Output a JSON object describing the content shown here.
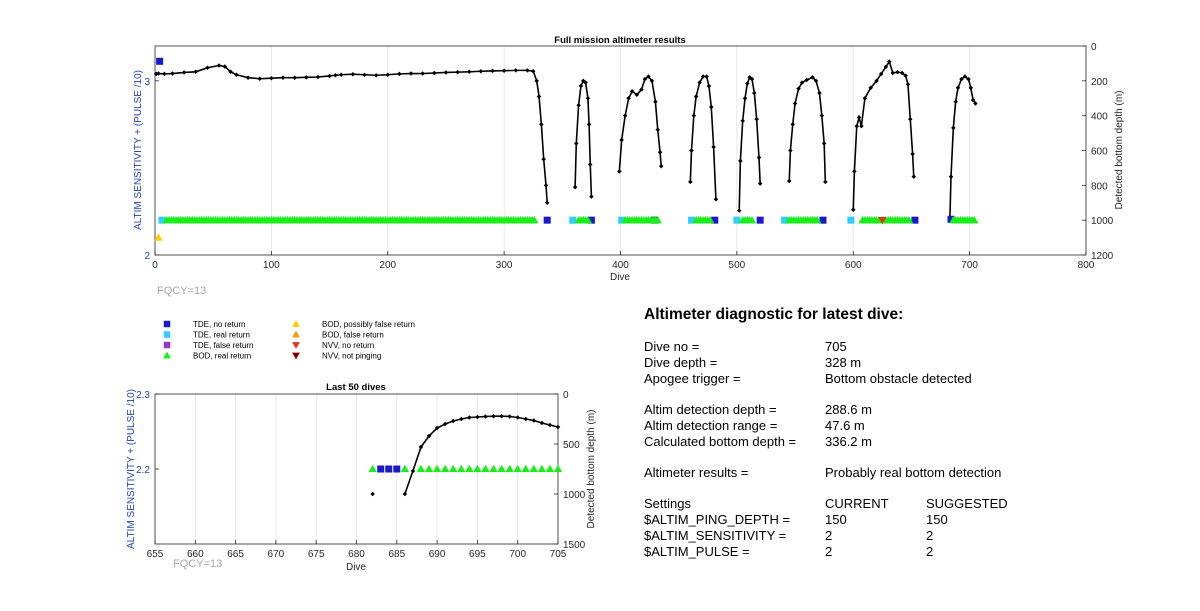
{
  "main_chart": {
    "title": "Full mission altimeter results",
    "xlabel": "Dive",
    "ylabel_left": "ALTIM SENSITIVITY + (PULSE /10)",
    "ylabel_right": "Detected bottom depth (m)",
    "xticks": [
      "0",
      "100",
      "200",
      "300",
      "400",
      "500",
      "600",
      "700",
      "800"
    ],
    "yticks_left": [
      "2",
      "3"
    ],
    "yticks_right": [
      "0",
      "200",
      "400",
      "600",
      "800",
      "1000",
      "1200"
    ],
    "fqcy": "FQCY=13"
  },
  "small_chart": {
    "title": "Last 50 dives",
    "xlabel": "Dive",
    "ylabel_left": "ALTIM SENSITIVITY + (PULSE /10)",
    "ylabel_right": "Detected bottom depth (m)",
    "xticks": [
      "655",
      "660",
      "665",
      "670",
      "675",
      "680",
      "685",
      "690",
      "695",
      "700",
      "705"
    ],
    "yticks_left": [
      "2.3",
      "2.2"
    ],
    "yticks_right": [
      "0",
      "500",
      "1000",
      "1500"
    ],
    "fqcy": "FQCY=13"
  },
  "legend": [
    {
      "label": "TDE, no return",
      "color": "#1a1acc",
      "marker": "square"
    },
    {
      "label": "TDE, real return",
      "color": "#33ccff",
      "marker": "square"
    },
    {
      "label": "TDE, false return",
      "color": "#9933cc",
      "marker": "square"
    },
    {
      "label": "BOD, real return",
      "color": "#1aee1a",
      "marker": "triangle-up"
    },
    {
      "label": "BOD, possibly false return",
      "color": "#ffcc00",
      "marker": "triangle-up"
    },
    {
      "label": "BOD, false return",
      "color": "#ff9900",
      "marker": "triangle-up"
    },
    {
      "label": "NVV, no return",
      "color": "#e6331a",
      "marker": "triangle-down"
    },
    {
      "label": "NVV, not pinging",
      "color": "#800000",
      "marker": "triangle-down"
    }
  ],
  "diagnostic": {
    "title": "Altimeter diagnostic for latest dive:",
    "rows1": [
      {
        "label": "Dive no =",
        "value": "705"
      },
      {
        "label": "Dive depth =",
        "value": "328 m"
      },
      {
        "label": "Apogee trigger =",
        "value": "Bottom obstacle detected"
      }
    ],
    "rows2": [
      {
        "label": "Altim detection depth =",
        "value": "288.6 m"
      },
      {
        "label": "Altim detection range =",
        "value": "47.6 m"
      },
      {
        "label": "Calculated bottom depth =",
        "value": "336.2 m"
      }
    ],
    "results_label": "Altimeter results =",
    "results_value": "Probably real bottom detection",
    "settings_header": {
      "label": "Settings",
      "current": "CURRENT",
      "suggested": "SUGGESTED"
    },
    "settings": [
      {
        "name": "$ALTIM_PING_DEPTH =",
        "current": "150",
        "suggested": "150"
      },
      {
        "name": "$ALTIM_SENSITIVITY =",
        "current": "2",
        "suggested": "2"
      },
      {
        "name": "$ALTIM_PULSE =",
        "current": "2",
        "suggested": "2"
      }
    ]
  },
  "chart_data": [
    {
      "type": "scatter",
      "title": "Full mission altimeter results",
      "xlabel": "Dive",
      "ylabel": "ALTIM SENSITIVITY + (PULSE /10)",
      "ylabel_right": "Detected bottom depth (m)",
      "xlim": [
        0,
        800
      ],
      "ylim": [
        2,
        3.2
      ],
      "ylim_right": [
        1200,
        0
      ],
      "grid": true,
      "series": [
        {
          "name": "",
          "axis": "right",
          "style": "line-dots",
          "color": "#000000",
          "segments": [
            [
              [
                1,
                160
              ],
              [
                3,
                158
              ],
              [
                8,
                160
              ],
              [
                15,
                158
              ],
              [
                25,
                152
              ],
              [
                35,
                148
              ],
              [
                45,
                125
              ],
              [
                55,
                112
              ],
              [
                60,
                118
              ],
              [
                65,
                148
              ],
              [
                70,
                165
              ],
              [
                80,
                182
              ],
              [
                90,
                188
              ],
              [
                100,
                185
              ],
              [
                110,
                182
              ],
              [
                120,
                182
              ],
              [
                130,
                180
              ],
              [
                140,
                178
              ],
              [
                150,
                172
              ],
              [
                155,
                168
              ],
              [
                160,
                165
              ],
              [
                170,
                162
              ],
              [
                180,
                165
              ],
              [
                190,
                168
              ],
              [
                200,
                165
              ],
              [
                210,
                160
              ],
              [
                220,
                158
              ],
              [
                230,
                158
              ],
              [
                240,
                155
              ],
              [
                250,
                152
              ],
              [
                260,
                150
              ],
              [
                270,
                148
              ],
              [
                280,
                145
              ],
              [
                290,
                143
              ],
              [
                300,
                142
              ],
              [
                310,
                140
              ],
              [
                320,
                140
              ],
              [
                325,
                145
              ],
              [
                328,
                200
              ],
              [
                330,
                290
              ],
              [
                332,
                450
              ],
              [
                334,
                650
              ],
              [
                336,
                800
              ],
              [
                337,
                900
              ]
            ],
            [
              [
                361,
                810
              ],
              [
                362,
                560
              ],
              [
                364,
                340
              ],
              [
                366,
                230
              ],
              [
                368,
                200
              ],
              [
                370,
                210
              ],
              [
                372,
                300
              ],
              [
                373,
                450
              ],
              [
                374,
                680
              ],
              [
                375,
                865
              ]
            ],
            [
              [
                399,
                720
              ],
              [
                401,
                540
              ],
              [
                404,
                400
              ],
              [
                407,
                300
              ],
              [
                410,
                260
              ],
              [
                414,
                280
              ],
              [
                418,
                250
              ],
              [
                421,
                190
              ],
              [
                424,
                175
              ],
              [
                427,
                200
              ],
              [
                430,
                320
              ],
              [
                432,
                480
              ],
              [
                434,
                610
              ],
              [
                435,
                690
              ]
            ],
            [
              [
                460,
                780
              ],
              [
                461,
                600
              ],
              [
                463,
                400
              ],
              [
                465,
                290
              ],
              [
                468,
                210
              ],
              [
                471,
                175
              ],
              [
                474,
                175
              ],
              [
                476,
                230
              ],
              [
                478,
                350
              ],
              [
                480,
                580
              ],
              [
                482,
                880
              ]
            ],
            [
              [
                502,
                945
              ],
              [
                503,
                660
              ],
              [
                505,
                430
              ],
              [
                507,
                300
              ],
              [
                509,
                215
              ],
              [
                511,
                180
              ],
              [
                513,
                190
              ],
              [
                515,
                270
              ],
              [
                517,
                420
              ],
              [
                519,
                640
              ],
              [
                520,
                790
              ]
            ],
            [
              [
                545,
                775
              ],
              [
                546,
                600
              ],
              [
                548,
                450
              ],
              [
                550,
                330
              ],
              [
                553,
                245
              ],
              [
                556,
                210
              ],
              [
                560,
                195
              ],
              [
                565,
                180
              ],
              [
                568,
                200
              ],
              [
                571,
                270
              ],
              [
                573,
                400
              ],
              [
                575,
                560
              ],
              [
                576,
                780
              ]
            ],
            [
              [
                600,
                940
              ],
              [
                601,
                720
              ],
              [
                603,
                460
              ],
              [
                605,
                410
              ],
              [
                607,
                460
              ],
              [
                610,
                300
              ],
              [
                615,
                240
              ],
              [
                620,
                200
              ],
              [
                624,
                160
              ],
              [
                628,
                120
              ],
              [
                631,
                90
              ],
              [
                634,
                155
              ],
              [
                638,
                150
              ],
              [
                642,
                155
              ],
              [
                645,
                170
              ],
              [
                647,
                220
              ],
              [
                649,
                420
              ],
              [
                651,
                620
              ],
              [
                652,
                750
              ]
            ],
            [
              [
                683,
                1000
              ],
              [
                684,
                750
              ],
              [
                686,
                470
              ],
              [
                688,
                320
              ],
              [
                690,
                240
              ],
              [
                693,
                190
              ],
              [
                696,
                175
              ],
              [
                699,
                190
              ],
              [
                701,
                240
              ],
              [
                703,
                310
              ],
              [
                705,
                330
              ]
            ]
          ]
        },
        {
          "name": "TDE, no return",
          "axis": "right",
          "points": [
            [
              4,
              88
            ],
            [
              337,
              1000
            ],
            [
              375,
              1000
            ],
            [
              429,
              1000
            ],
            [
              481,
              1000
            ],
            [
              520,
              1000
            ],
            [
              574,
              1000
            ],
            [
              653,
              1000
            ],
            [
              684,
              995
            ]
          ]
        },
        {
          "name": "TDE, real return",
          "axis": "right",
          "points": [
            [
              6,
              1000
            ],
            [
              359,
              1000
            ],
            [
              401,
              1000
            ],
            [
              461,
              1000
            ],
            [
              500,
              1000
            ],
            [
              541,
              1000
            ],
            [
              598,
              1000
            ]
          ]
        },
        {
          "name": "BOD, real return",
          "axis": "right",
          "x_ranges": [
            [
              10,
              327
            ],
            [
              364,
              372
            ],
            [
              404,
              432
            ],
            [
              465,
              478
            ],
            [
              505,
              514
            ],
            [
              545,
              570
            ],
            [
              608,
              648
            ],
            [
              686,
              705
            ]
          ],
          "y": 1000
        },
        {
          "name": "BOD, possibly false return",
          "axis": "left",
          "points": [
            [
              3,
              2.1
            ]
          ]
        },
        {
          "name": "NVV, no return",
          "axis": "right",
          "points": [
            [
              625,
              1000
            ]
          ]
        }
      ]
    },
    {
      "type": "scatter",
      "title": "Last 50 dives",
      "xlabel": "Dive",
      "ylabel": "ALTIM SENSITIVITY + (PULSE /10)",
      "ylabel_right": "Detected bottom depth (m)",
      "xlim": [
        655,
        705
      ],
      "ylim": [
        2.1,
        2.3
      ],
      "ylim_right": [
        1500,
        0
      ],
      "grid": true,
      "series": [
        {
          "name": "",
          "axis": "right",
          "style": "line-dots",
          "color": "#000000",
          "segments": [
            [
              [
                682,
                1000
              ]
            ],
            [
              [
                686,
                1000
              ],
              [
                687,
                770
              ],
              [
                688,
                530
              ],
              [
                689,
                420
              ],
              [
                690,
                340
              ],
              [
                691,
                300
              ],
              [
                692,
                270
              ],
              [
                693,
                250
              ],
              [
                694,
                235
              ],
              [
                695,
                230
              ],
              [
                696,
                225
              ],
              [
                697,
                222
              ],
              [
                698,
                222
              ],
              [
                699,
                225
              ],
              [
                700,
                235
              ],
              [
                701,
                250
              ],
              [
                702,
                265
              ],
              [
                703,
                290
              ],
              [
                704,
                310
              ],
              [
                705,
                330
              ]
            ]
          ]
        },
        {
          "name": "TDE, no return",
          "axis": "left",
          "points": [
            [
              683,
              2.2
            ],
            [
              684,
              2.2
            ],
            [
              685,
              2.2
            ]
          ]
        },
        {
          "name": "BOD, real return",
          "axis": "left",
          "points": [
            [
              682,
              2.2
            ],
            [
              686,
              2.2
            ],
            [
              688,
              2.2
            ],
            [
              689,
              2.2
            ],
            [
              690,
              2.2
            ],
            [
              691,
              2.2
            ],
            [
              692,
              2.2
            ],
            [
              693,
              2.2
            ],
            [
              694,
              2.2
            ],
            [
              695,
              2.2
            ],
            [
              696,
              2.2
            ],
            [
              697,
              2.2
            ],
            [
              698,
              2.2
            ],
            [
              699,
              2.2
            ],
            [
              700,
              2.2
            ],
            [
              701,
              2.2
            ],
            [
              702,
              2.2
            ],
            [
              703,
              2.2
            ],
            [
              704,
              2.2
            ],
            [
              705,
              2.2
            ]
          ]
        }
      ]
    }
  ]
}
